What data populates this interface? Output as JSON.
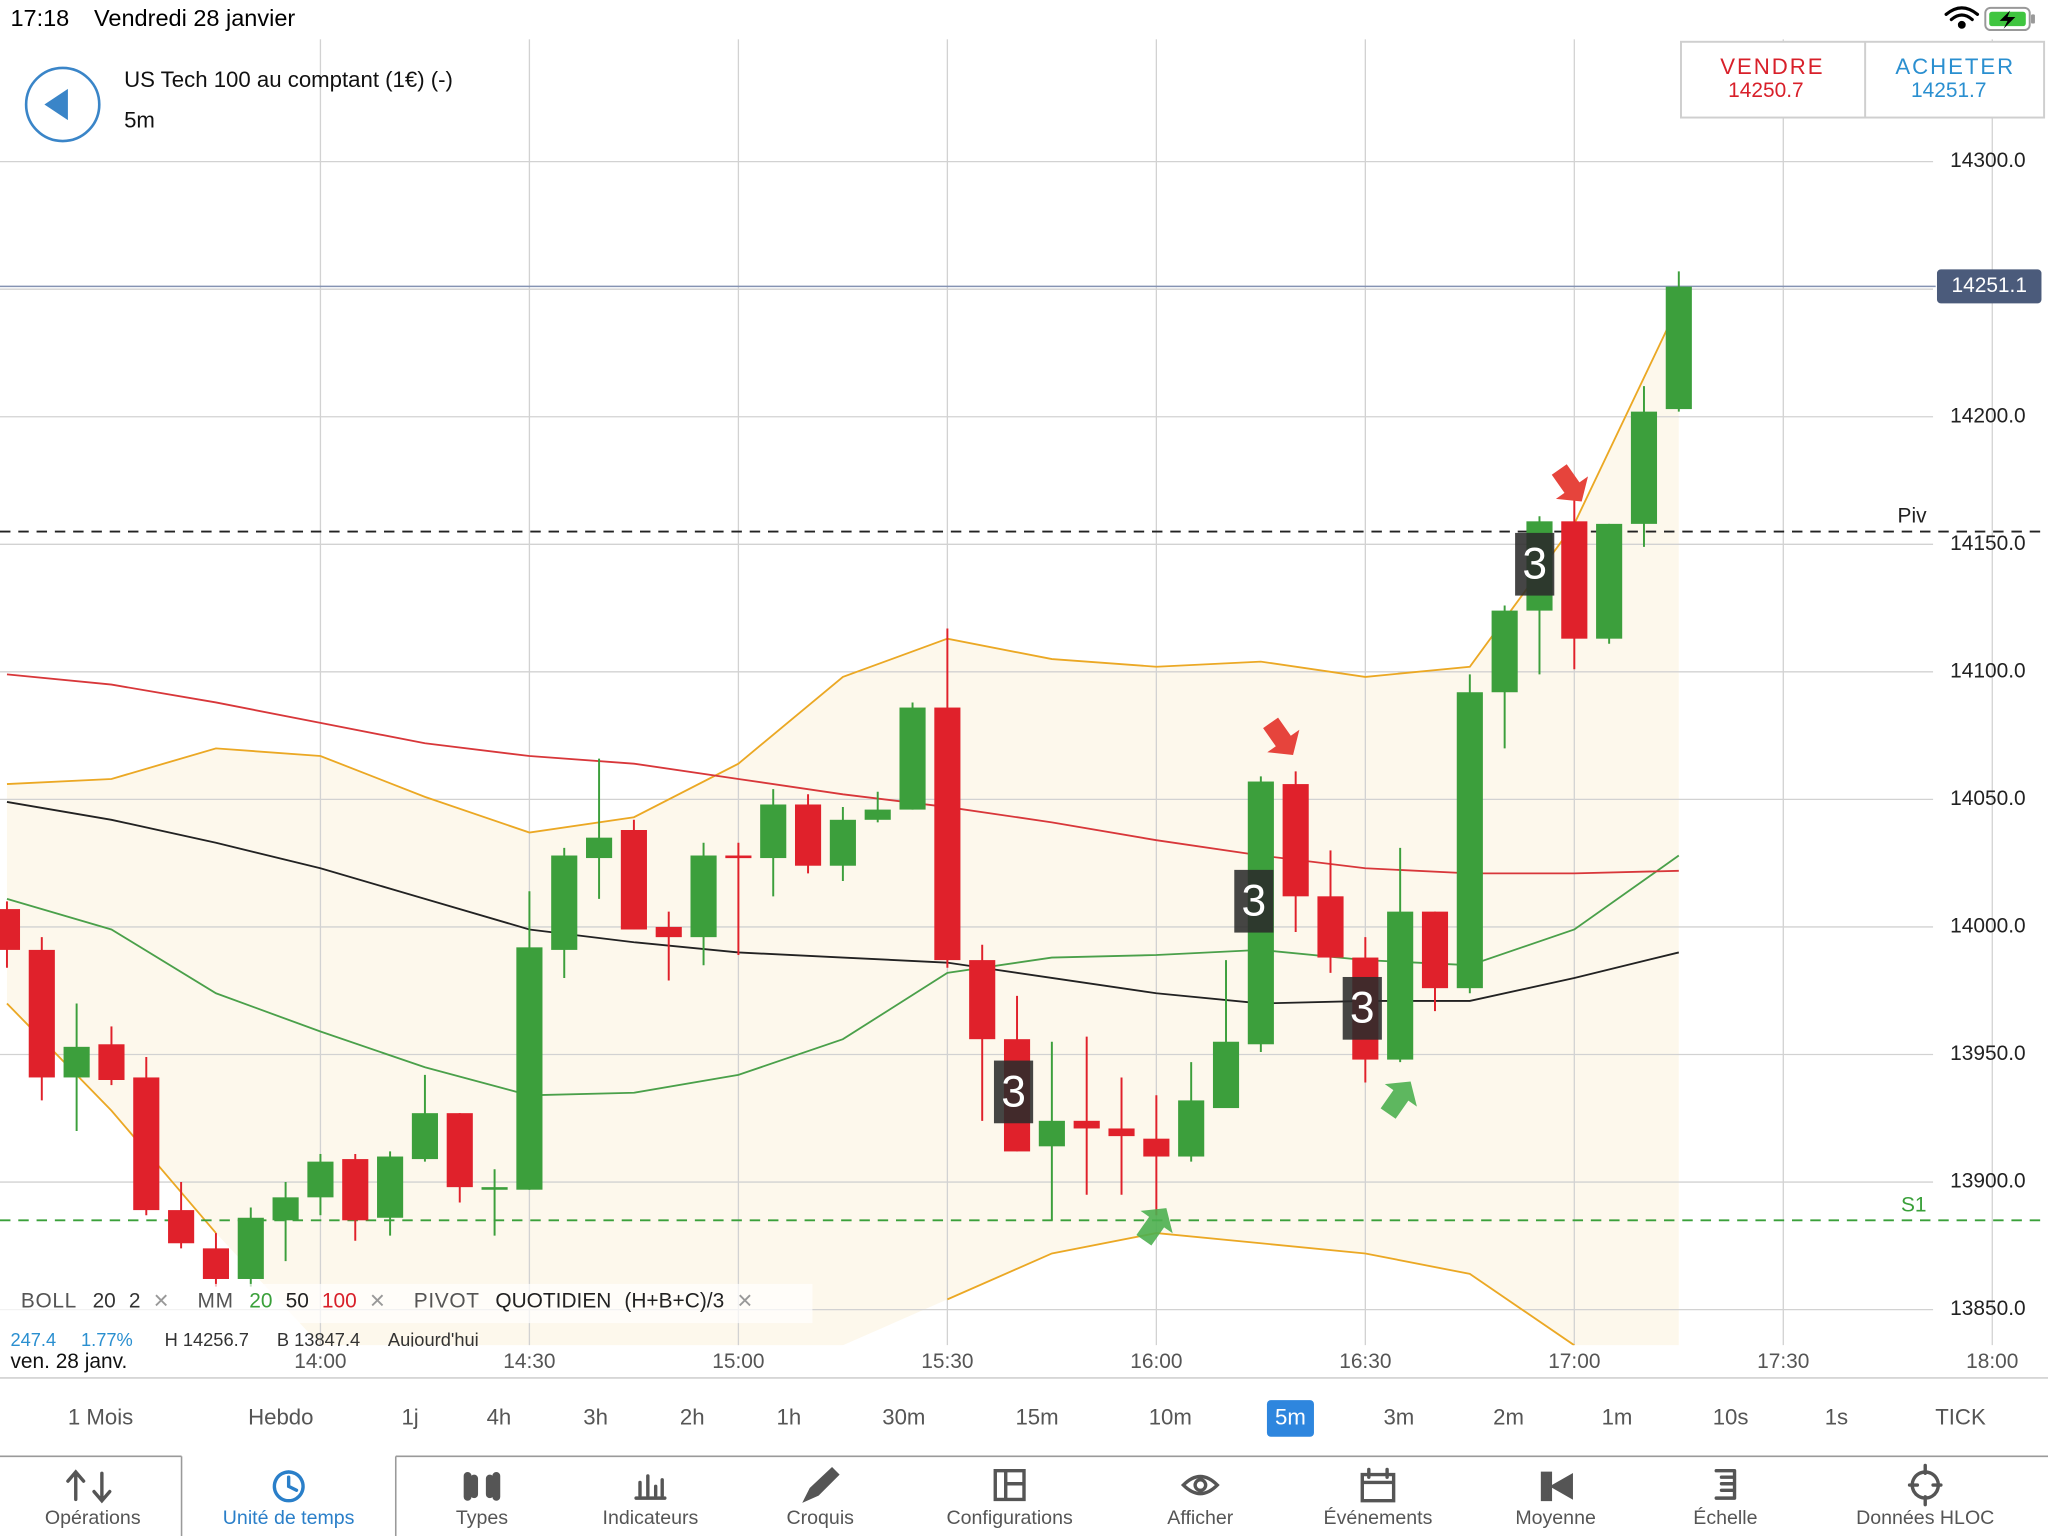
{
  "status_bar": {
    "time": "17:18",
    "date": "Vendredi 28 janvier"
  },
  "header": {
    "instrument": "US Tech 100 au comptant (1€) (-)",
    "timeframe": "5m",
    "sell": {
      "label": "VENDRE",
      "price": "14250.7"
    },
    "buy": {
      "label": "ACHETER",
      "price": "14251.7"
    }
  },
  "chart_data": {
    "type": "candlestick",
    "up_color": "#3c9f3c",
    "down_color": "#e0212b",
    "date_label": "ven. 28 janv.",
    "xlim": [
      794,
      1088
    ],
    "xticks": [
      {
        "value": 840,
        "label": "14:00"
      },
      {
        "value": 870,
        "label": "14:30"
      },
      {
        "value": 900,
        "label": "15:00"
      },
      {
        "value": 930,
        "label": "15:30"
      },
      {
        "value": 960,
        "label": "16:00"
      },
      {
        "value": 990,
        "label": "16:30"
      },
      {
        "value": 1020,
        "label": "17:00"
      },
      {
        "value": 1050,
        "label": "17:30"
      },
      {
        "value": 1080,
        "label": "18:00"
      }
    ],
    "ylim": [
      13836,
      14348
    ],
    "yticks": [
      {
        "value": 13850,
        "label": "13850.0"
      },
      {
        "value": 13900,
        "label": "13900.0"
      },
      {
        "value": 13950,
        "label": "13950.0"
      },
      {
        "value": 14000,
        "label": "14000.0"
      },
      {
        "value": 14050,
        "label": "14050.0"
      },
      {
        "value": 14100,
        "label": "14100.0"
      },
      {
        "value": 14150,
        "label": "14150.0"
      },
      {
        "value": 14200,
        "label": "14200.0"
      },
      {
        "value": 14250,
        "label": "14250.0"
      },
      {
        "value": 14300,
        "label": "14300.0"
      }
    ],
    "grid": true,
    "x": [
      795,
      800,
      805,
      810,
      815,
      820,
      825,
      830,
      835,
      840,
      845,
      850,
      855,
      860,
      865,
      870,
      875,
      880,
      885,
      890,
      895,
      900,
      905,
      910,
      915,
      920,
      925,
      930,
      935,
      940,
      945,
      950,
      955,
      960,
      965,
      970,
      975,
      980,
      985,
      990,
      995,
      1000,
      1005,
      1010,
      1015,
      1020,
      1025,
      1030,
      1035
    ],
    "open": [
      14007,
      13991,
      13941,
      13954,
      13941,
      13889,
      13874,
      13862,
      13885,
      13894,
      13909,
      13886,
      13909,
      13927,
      13897,
      13897,
      13991,
      14027,
      14038,
      14000,
      13996,
      14028,
      14027,
      14048,
      14024,
      14042,
      14046,
      14086,
      13987,
      13956,
      13914,
      13924,
      13921,
      13917,
      13910,
      13929,
      13954,
      14056,
      14012,
      13988,
      13948,
      14006,
      13976,
      14092,
      14124,
      14159,
      14113,
      14158,
      14203
    ],
    "high": [
      14010,
      13996,
      13970,
      13961,
      13949,
      13900,
      13880,
      13890,
      13900,
      13911,
      13911,
      13912,
      13942,
      13927,
      13905,
      14014,
      14031,
      14066,
      14042,
      14006,
      14033,
      14033,
      14054,
      14052,
      14047,
      14053,
      14088,
      14117,
      13993,
      13973,
      13955,
      13957,
      13941,
      13934,
      13947,
      13987,
      14059,
      14061,
      14030,
      13996,
      14031,
      14006,
      14099,
      14126,
      14161,
      14169,
      14158,
      14212,
      14257
    ],
    "low": [
      13984,
      13932,
      13920,
      13938,
      13887,
      13874,
      13859,
      13859,
      13869,
      13887,
      13877,
      13879,
      13908,
      13892,
      13879,
      13897,
      13980,
      14011,
      13999,
      13979,
      13985,
      13989,
      14012,
      14021,
      14018,
      14041,
      14046,
      13984,
      13924,
      13912,
      13885,
      13895,
      13895,
      13887,
      13908,
      13929,
      13951,
      13998,
      13982,
      13939,
      13947,
      13967,
      13974,
      14070,
      14099,
      14101,
      14111,
      14149,
      14202
    ],
    "close": [
      13991,
      13941,
      13953,
      13940,
      13889,
      13876,
      13862,
      13886,
      13894,
      13908,
      13885,
      13910,
      13927,
      13898,
      13898,
      13992,
      14028,
      14035,
      13999,
      13996,
      14028,
      14027,
      14048,
      14024,
      14042,
      14046,
      14086,
      13987,
      13956,
      13912,
      13924,
      13921,
      13918,
      13910,
      13932,
      13955,
      14057,
      14012,
      13988,
      13948,
      14006,
      13976,
      14092,
      14124,
      14159,
      14113,
      14158,
      14202,
      14251
    ],
    "line_x": [
      795,
      810,
      825,
      840,
      855,
      870,
      885,
      900,
      915,
      930,
      945,
      960,
      975,
      990,
      1005,
      1020,
      1035
    ],
    "band_fill": "#fdf8ec",
    "indicators": [
      {
        "color": "#eba824",
        "values": [
          14056,
          14058,
          14070,
          14067,
          14051,
          14037,
          14043,
          14064,
          14098,
          14113,
          14105,
          14102,
          14104,
          14098,
          14102,
          14158,
          14244
        ]
      },
      {
        "color": "#eba824",
        "values": [
          13970,
          13928,
          13880,
          null,
          null,
          null,
          null,
          null,
          null,
          13854,
          13872,
          13880,
          13876,
          13872,
          13864,
          13836,
          null
        ]
      },
      {
        "color": "#4aa04a",
        "values": [
          14011,
          13999,
          13974,
          13959,
          13945,
          13934,
          13935,
          13942,
          13956,
          13982,
          13988,
          13989,
          13991,
          13987,
          13985,
          13999,
          14028
        ]
      },
      {
        "color": "#222222",
        "values": [
          14049,
          14042,
          14033,
          14023,
          14011,
          13999,
          13994,
          13990,
          13988,
          13986,
          13980,
          13974,
          13970,
          13971,
          13971,
          13980,
          13990
        ]
      },
      {
        "color": "#d8373a",
        "values": [
          14099,
          14095,
          14088,
          14080,
          14072,
          14067,
          14064,
          14058,
          14052,
          14047,
          14041,
          14034,
          14028,
          14023,
          14021,
          14021,
          14022
        ]
      }
    ],
    "current_price": {
      "value": 14251.1,
      "label": "14251.1"
    },
    "pivots": [
      {
        "name": "Piv",
        "value": 14155,
        "color": "#222222"
      },
      {
        "name": "S1",
        "value": 13885,
        "color": "#3aa03a"
      }
    ],
    "annotations": [
      "3",
      "3",
      "3",
      "3"
    ],
    "legend_close": "×",
    "legend": [
      {
        "name": "BOLL",
        "params": [
          {
            "text": "20",
            "color": "#333333"
          },
          {
            "text": "2",
            "color": "#333333"
          }
        ]
      },
      {
        "name": "MM",
        "params": [
          {
            "text": "20",
            "color": "#3aa03a"
          },
          {
            "text": "50",
            "color": "#222222"
          },
          {
            "text": "100",
            "color": "#d8202a"
          }
        ]
      },
      {
        "name": "PIVOT",
        "params": [
          {
            "text": "QUOTIDIEN",
            "color": "#222222"
          },
          {
            "text": "(H+B+C)/3",
            "color": "#222222"
          }
        ]
      }
    ],
    "info": [
      "247.4",
      "1.77%",
      "H 14256.7",
      "B 13847.4",
      "Aujourd'hui"
    ]
  },
  "timeframes": [
    "1 Mois",
    "Hebdo",
    "1j",
    "4h",
    "3h",
    "2h",
    "1h",
    "30m",
    "15m",
    "10m",
    "5m",
    "3m",
    "2m",
    "1m",
    "10s",
    "1s",
    "TICK"
  ],
  "active_timeframe": "5m",
  "toolbar": [
    "Opérations",
    "Unité de temps",
    "Types",
    "Indicateurs",
    "Croquis",
    "Configurations",
    "Afficher",
    "Événements",
    "Moyenne",
    "Échelle",
    "Données HLOC"
  ],
  "active_tool": "Unité de temps"
}
